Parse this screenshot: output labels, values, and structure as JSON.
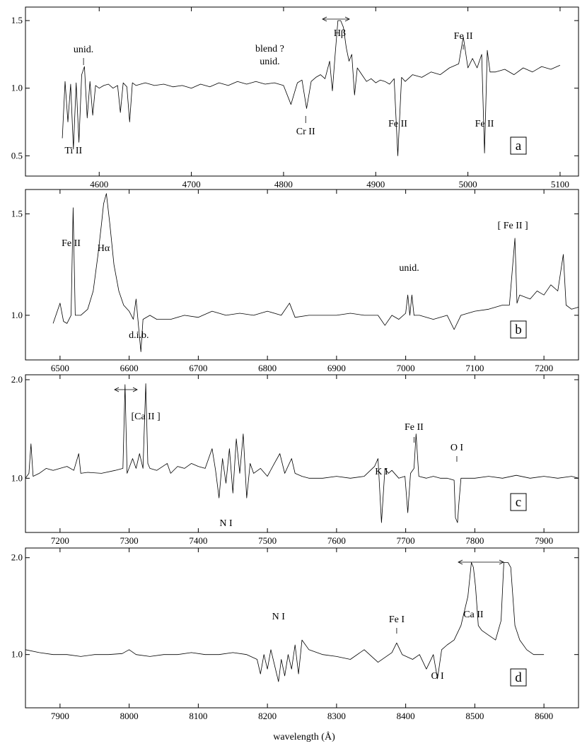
{
  "chart_data": [
    {
      "type": "line",
      "panel_label": "a",
      "xlim": [
        4520,
        5120
      ],
      "ylim": [
        0.35,
        1.6
      ],
      "xticks": [
        4600,
        4700,
        4800,
        4900,
        5000,
        5100
      ],
      "yticks": [
        0.5,
        1.0,
        1.5
      ],
      "ytick_labels": [
        "0.5",
        "1.0",
        "1.5"
      ],
      "annotations": [
        {
          "text": "unid.",
          "x": 4583
        },
        {
          "text": "Ti II",
          "x": 4572
        },
        {
          "text": "blend ?",
          "x": 4785
        },
        {
          "text": "unid.",
          "x": 4785
        },
        {
          "text": "Cr II",
          "x": 4824
        },
        {
          "text": "Hβ",
          "x": 4861
        },
        {
          "text": "Fe II",
          "x": 4924
        },
        {
          "text": "Fe II",
          "x": 5018
        },
        {
          "text": "Fe II",
          "x": 4995
        }
      ],
      "series": [
        {
          "x": [
            4560,
            4563,
            4566,
            4569,
            4572,
            4575,
            4578,
            4581,
            4584,
            4587,
            4590,
            4593,
            4596,
            4600,
            4605,
            4610,
            4615,
            4620,
            4623,
            4626,
            4630,
            4633,
            4636,
            4640,
            4650,
            4660,
            4670,
            4680,
            4690,
            4700,
            4710,
            4720,
            4730,
            4740,
            4750,
            4760,
            4770,
            4780,
            4790,
            4800,
            4808,
            4815,
            4820,
            4825,
            4830,
            4835,
            4840,
            4845,
            4850,
            4853,
            4856,
            4859,
            4862,
            4865,
            4868,
            4871,
            4874,
            4877,
            4880,
            4885,
            4890,
            4895,
            4900,
            4905,
            4910,
            4915,
            4920,
            4924,
            4928,
            4932,
            4940,
            4950,
            4960,
            4970,
            4980,
            4990,
            4995,
            5000,
            5005,
            5010,
            5015,
            5018,
            5021,
            5024,
            5030,
            5040,
            5050,
            5060,
            5070,
            5080,
            5090,
            5100
          ],
          "y": [
            0.63,
            1.05,
            0.75,
            1.03,
            0.55,
            1.04,
            0.6,
            1.1,
            1.16,
            0.78,
            1.05,
            0.8,
            1.02,
            1.0,
            1.02,
            1.03,
            1.0,
            1.02,
            0.82,
            1.04,
            1.01,
            0.75,
            1.04,
            1.02,
            1.04,
            1.02,
            1.03,
            1.01,
            1.02,
            1.0,
            1.03,
            1.01,
            1.04,
            1.02,
            1.05,
            1.03,
            1.05,
            1.03,
            1.04,
            1.02,
            0.88,
            1.04,
            1.06,
            0.85,
            1.05,
            1.08,
            1.1,
            1.07,
            1.2,
            0.98,
            1.25,
            1.5,
            1.5,
            1.45,
            1.3,
            1.2,
            1.25,
            0.95,
            1.15,
            1.1,
            1.05,
            1.07,
            1.04,
            1.06,
            1.05,
            1.03,
            1.07,
            0.5,
            1.08,
            1.05,
            1.1,
            1.08,
            1.12,
            1.1,
            1.15,
            1.18,
            1.38,
            1.15,
            1.22,
            1.15,
            1.25,
            0.52,
            1.28,
            1.12,
            1.12,
            1.14,
            1.1,
            1.15,
            1.12,
            1.16,
            1.14,
            1.17
          ]
        }
      ]
    },
    {
      "type": "line",
      "panel_label": "b",
      "xlim": [
        6450,
        7250
      ],
      "ylim": [
        0.78,
        1.62
      ],
      "xticks": [
        6500,
        6600,
        6700,
        6800,
        6900,
        7000,
        7100,
        7200
      ],
      "yticks": [
        1.0,
        1.5
      ],
      "ytick_labels": [
        "1.0",
        "1.5"
      ],
      "annotations": [
        {
          "text": "Fe II",
          "x": 6516
        },
        {
          "text": "Hα",
          "x": 6563
        },
        {
          "text": "d.i.b.",
          "x": 6614
        },
        {
          "text": "unid.",
          "x": 7005
        },
        {
          "text": "[ Fe II ]",
          "x": 7155
        }
      ],
      "series": [
        {
          "x": [
            6490,
            6500,
            6505,
            6510,
            6516,
            6519,
            6522,
            6530,
            6540,
            6548,
            6555,
            6560,
            6563,
            6567,
            6572,
            6578,
            6585,
            6592,
            6600,
            6606,
            6610,
            6614,
            6617,
            6620,
            6630,
            6640,
            6660,
            6680,
            6700,
            6720,
            6740,
            6760,
            6780,
            6800,
            6820,
            6832,
            6840,
            6860,
            6880,
            6900,
            6920,
            6940,
            6960,
            6970,
            6980,
            6990,
            7000,
            7003,
            7006,
            7009,
            7012,
            7020,
            7040,
            7060,
            7070,
            7080,
            7100,
            7120,
            7140,
            7150,
            7158,
            7161,
            7165,
            7180,
            7190,
            7200,
            7210,
            7220,
            7228,
            7232,
            7240,
            7250
          ],
          "y": [
            0.96,
            1.06,
            0.97,
            0.96,
            1.0,
            1.53,
            1.0,
            1.0,
            1.03,
            1.12,
            1.3,
            1.45,
            1.55,
            1.6,
            1.45,
            1.25,
            1.12,
            1.05,
            1.02,
            0.98,
            1.08,
            0.93,
            0.82,
            0.98,
            1.0,
            0.98,
            0.98,
            1.0,
            0.99,
            1.02,
            1.0,
            1.01,
            1.0,
            1.02,
            1.0,
            1.06,
            0.99,
            1.0,
            1.0,
            1.0,
            1.01,
            1.0,
            1.0,
            0.95,
            1.0,
            0.98,
            1.01,
            1.1,
            1.0,
            1.1,
            1.0,
            1.0,
            0.98,
            1.0,
            0.93,
            1.0,
            1.02,
            1.03,
            1.05,
            1.05,
            1.38,
            1.06,
            1.1,
            1.08,
            1.12,
            1.1,
            1.15,
            1.12,
            1.3,
            1.05,
            1.03,
            1.04
          ]
        }
      ]
    },
    {
      "type": "line",
      "panel_label": "c",
      "xlim": [
        7150,
        7950
      ],
      "ylim": [
        0.45,
        2.05
      ],
      "xticks": [
        7200,
        7300,
        7400,
        7500,
        7600,
        7700,
        7800,
        7900
      ],
      "yticks": [
        1.0,
        2.0
      ],
      "ytick_labels": [
        "1.0",
        "2.0"
      ],
      "annotations": [
        {
          "text": "[Ca II ]",
          "x": 7324
        },
        {
          "text": "N I",
          "x": 7440
        },
        {
          "text": "K I",
          "x": 7665
        },
        {
          "text": "Fe II",
          "x": 7712
        },
        {
          "text": "O I",
          "x": 7774
        }
      ],
      "series": [
        {
          "x": [
            7150,
            7155,
            7158,
            7161,
            7170,
            7180,
            7190,
            7200,
            7210,
            7220,
            7227,
            7230,
            7240,
            7260,
            7280,
            7291,
            7294,
            7297,
            7305,
            7310,
            7315,
            7320,
            7324,
            7327,
            7330,
            7340,
            7355,
            7360,
            7370,
            7380,
            7390,
            7400,
            7410,
            7420,
            7425,
            7430,
            7435,
            7440,
            7445,
            7450,
            7455,
            7460,
            7465,
            7470,
            7475,
            7480,
            7490,
            7500,
            7510,
            7518,
            7525,
            7535,
            7540,
            7550,
            7560,
            7580,
            7600,
            7620,
            7640,
            7655,
            7660,
            7665,
            7670,
            7675,
            7680,
            7690,
            7699,
            7703,
            7707,
            7712,
            7715,
            7719,
            7730,
            7740,
            7750,
            7760,
            7770,
            7772,
            7775,
            7777,
            7780,
            7790,
            7800,
            7820,
            7840,
            7860,
            7880,
            7900,
            7920,
            7940,
            7950
          ],
          "y": [
            1.0,
            1.05,
            1.35,
            1.02,
            1.05,
            1.1,
            1.08,
            1.1,
            1.12,
            1.08,
            1.25,
            1.05,
            1.06,
            1.05,
            1.08,
            1.1,
            1.95,
            1.05,
            1.2,
            1.1,
            1.25,
            1.1,
            1.96,
            1.15,
            1.1,
            1.08,
            1.15,
            1.05,
            1.12,
            1.1,
            1.15,
            1.12,
            1.1,
            1.3,
            1.08,
            0.8,
            1.2,
            0.95,
            1.3,
            0.85,
            1.4,
            1.05,
            1.45,
            0.8,
            1.15,
            1.05,
            1.1,
            1.02,
            1.15,
            1.25,
            1.05,
            1.2,
            1.05,
            1.02,
            1.0,
            1.0,
            1.02,
            1.0,
            1.02,
            1.12,
            1.2,
            0.55,
            1.1,
            1.05,
            1.08,
            1.0,
            1.02,
            0.65,
            1.05,
            1.1,
            1.45,
            1.02,
            1.0,
            1.02,
            1.0,
            1.0,
            0.98,
            0.6,
            0.55,
            0.75,
            1.0,
            1.0,
            1.0,
            1.02,
            1.0,
            1.03,
            1.0,
            1.02,
            1.0,
            1.02,
            1.0
          ]
        }
      ]
    },
    {
      "type": "line",
      "panel_label": "d",
      "xlim": [
        7850,
        8650
      ],
      "ylim": [
        0.45,
        2.1
      ],
      "xticks": [
        7900,
        8000,
        8100,
        8200,
        8300,
        8400,
        8500,
        8600
      ],
      "yticks": [
        1.0,
        2.0
      ],
      "ytick_labels": [
        "1.0",
        "2.0"
      ],
      "xlabel": "wavelength (Å)",
      "annotations": [
        {
          "text": "N I",
          "x": 8216
        },
        {
          "text": "Fe I",
          "x": 8387
        },
        {
          "text": "O I",
          "x": 8446
        },
        {
          "text": "Ca II",
          "x": 8498
        }
      ],
      "series": [
        {
          "x": [
            7850,
            7870,
            7890,
            7910,
            7930,
            7950,
            7970,
            7990,
            8000,
            8010,
            8030,
            8050,
            8070,
            8090,
            8110,
            8130,
            8150,
            8170,
            8185,
            8190,
            8195,
            8200,
            8205,
            8210,
            8216,
            8220,
            8225,
            8230,
            8235,
            8240,
            8245,
            8250,
            8260,
            8280,
            8300,
            8320,
            8340,
            8360,
            8380,
            8387,
            8395,
            8410,
            8420,
            8430,
            8440,
            8446,
            8452,
            8460,
            8470,
            8480,
            8490,
            8495,
            8498,
            8501,
            8505,
            8510,
            8520,
            8530,
            8538,
            8542,
            8545,
            8548,
            8552,
            8558,
            8565,
            8575,
            8585,
            8600
          ],
          "y": [
            1.05,
            1.02,
            1.0,
            1.0,
            0.98,
            1.0,
            1.0,
            1.01,
            1.05,
            1.0,
            0.98,
            1.0,
            1.0,
            1.02,
            1.0,
            1.0,
            1.02,
            1.0,
            0.95,
            0.8,
            1.0,
            0.85,
            1.05,
            0.9,
            0.72,
            0.95,
            0.78,
            1.0,
            0.85,
            1.1,
            0.8,
            1.15,
            1.05,
            1.0,
            0.98,
            0.95,
            1.05,
            0.92,
            1.02,
            1.12,
            1.0,
            0.95,
            1.0,
            0.85,
            1.0,
            0.75,
            1.05,
            1.1,
            1.15,
            1.3,
            1.6,
            1.95,
            1.9,
            1.7,
            1.3,
            1.25,
            1.2,
            1.15,
            1.35,
            1.95,
            1.95,
            1.95,
            1.9,
            1.3,
            1.15,
            1.05,
            1.0,
            1.0
          ]
        }
      ]
    }
  ]
}
